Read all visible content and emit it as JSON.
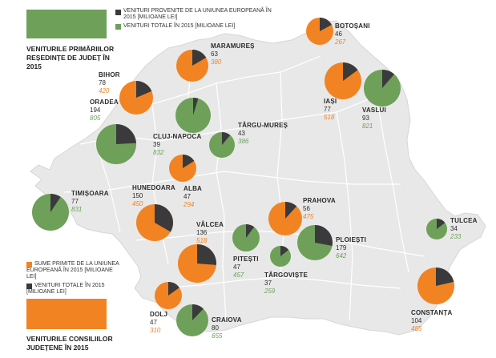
{
  "colors": {
    "orange": "#F28322",
    "green": "#6EA05A",
    "dark": "#3A3A3C",
    "map_fill": "#E8E8E8",
    "map_border": "#FFFFFF"
  },
  "legend_top": {
    "items": [
      {
        "label": "VENITURI PROVENITE DE LA UNIUNEA EUROPEANĂ ÎN 2015 [MILIOANE LEI]",
        "color": "#3A3A3C"
      },
      {
        "label": "VENITURI TOTALE ÎN 2015 [MILIOANE LEI]",
        "color": "#6EA05A"
      }
    ],
    "title": "VENITURILE PRIMĂRIILOR REȘEDINȚE DE JUDEȚ ÎN 2015"
  },
  "legend_bottom": {
    "items": [
      {
        "label": "SUME PRIMITE DE LA UNIUNEA EUROPEANĂ ÎN 2015 [MILIOANE LEI]",
        "color": "#F28322"
      },
      {
        "label": "VENITURI TOTALE ÎN 2015 [MILIOANE LEI]",
        "color": "#3A3A3C"
      }
    ],
    "title": "VENITURILE CONSILIILOR JUDEȚENE ÎN 2015"
  },
  "chart_data": {
    "type": "pie",
    "cities": [
      {
        "name": "ORADEA",
        "eu": 194,
        "total": 805,
        "kind": "city"
      },
      {
        "name": "CLUJ-NAPOCA",
        "eu": 39,
        "total": 832,
        "kind": "city"
      },
      {
        "name": "TÂRGU-MUREȘ",
        "eu": 43,
        "total": 386,
        "kind": "city"
      },
      {
        "name": "VASLUI",
        "eu": 93,
        "total": 821,
        "kind": "city"
      },
      {
        "name": "TIMIȘOARA",
        "eu": 77,
        "total": 831,
        "kind": "city"
      },
      {
        "name": "PITEȘTI",
        "eu": 47,
        "total": 457,
        "kind": "city"
      },
      {
        "name": "TÂRGOVIȘTE",
        "eu": 37,
        "total": 259,
        "kind": "city"
      },
      {
        "name": "PLOIEȘTI",
        "eu": 179,
        "total": 642,
        "kind": "city"
      },
      {
        "name": "TULCEA",
        "eu": 34,
        "total": 233,
        "kind": "city"
      },
      {
        "name": "CRAIOVA",
        "eu": 80,
        "total": 655,
        "kind": "city"
      }
    ],
    "counties": [
      {
        "name": "MARAMUREȘ",
        "eu": 63,
        "total": 380,
        "kind": "county"
      },
      {
        "name": "BOTOȘANI",
        "eu": 46,
        "total": 267,
        "kind": "county"
      },
      {
        "name": "BIHOR",
        "eu": 78,
        "total": 420,
        "kind": "county"
      },
      {
        "name": "IAȘI",
        "eu": 77,
        "total": 518,
        "kind": "county"
      },
      {
        "name": "HUNEDOARA",
        "eu": 150,
        "total": 450,
        "kind": "county"
      },
      {
        "name": "ALBA",
        "eu": 47,
        "total": 294,
        "kind": "county"
      },
      {
        "name": "PRAHOVA",
        "eu": 56,
        "total": 475,
        "kind": "county"
      },
      {
        "name": "VÂLCEA",
        "eu": 136,
        "total": 518,
        "kind": "county"
      },
      {
        "name": "DOLJ",
        "eu": 47,
        "total": 310,
        "kind": "county"
      },
      {
        "name": "CONSTANȚA",
        "eu": 104,
        "total": 485,
        "kind": "county"
      }
    ]
  }
}
